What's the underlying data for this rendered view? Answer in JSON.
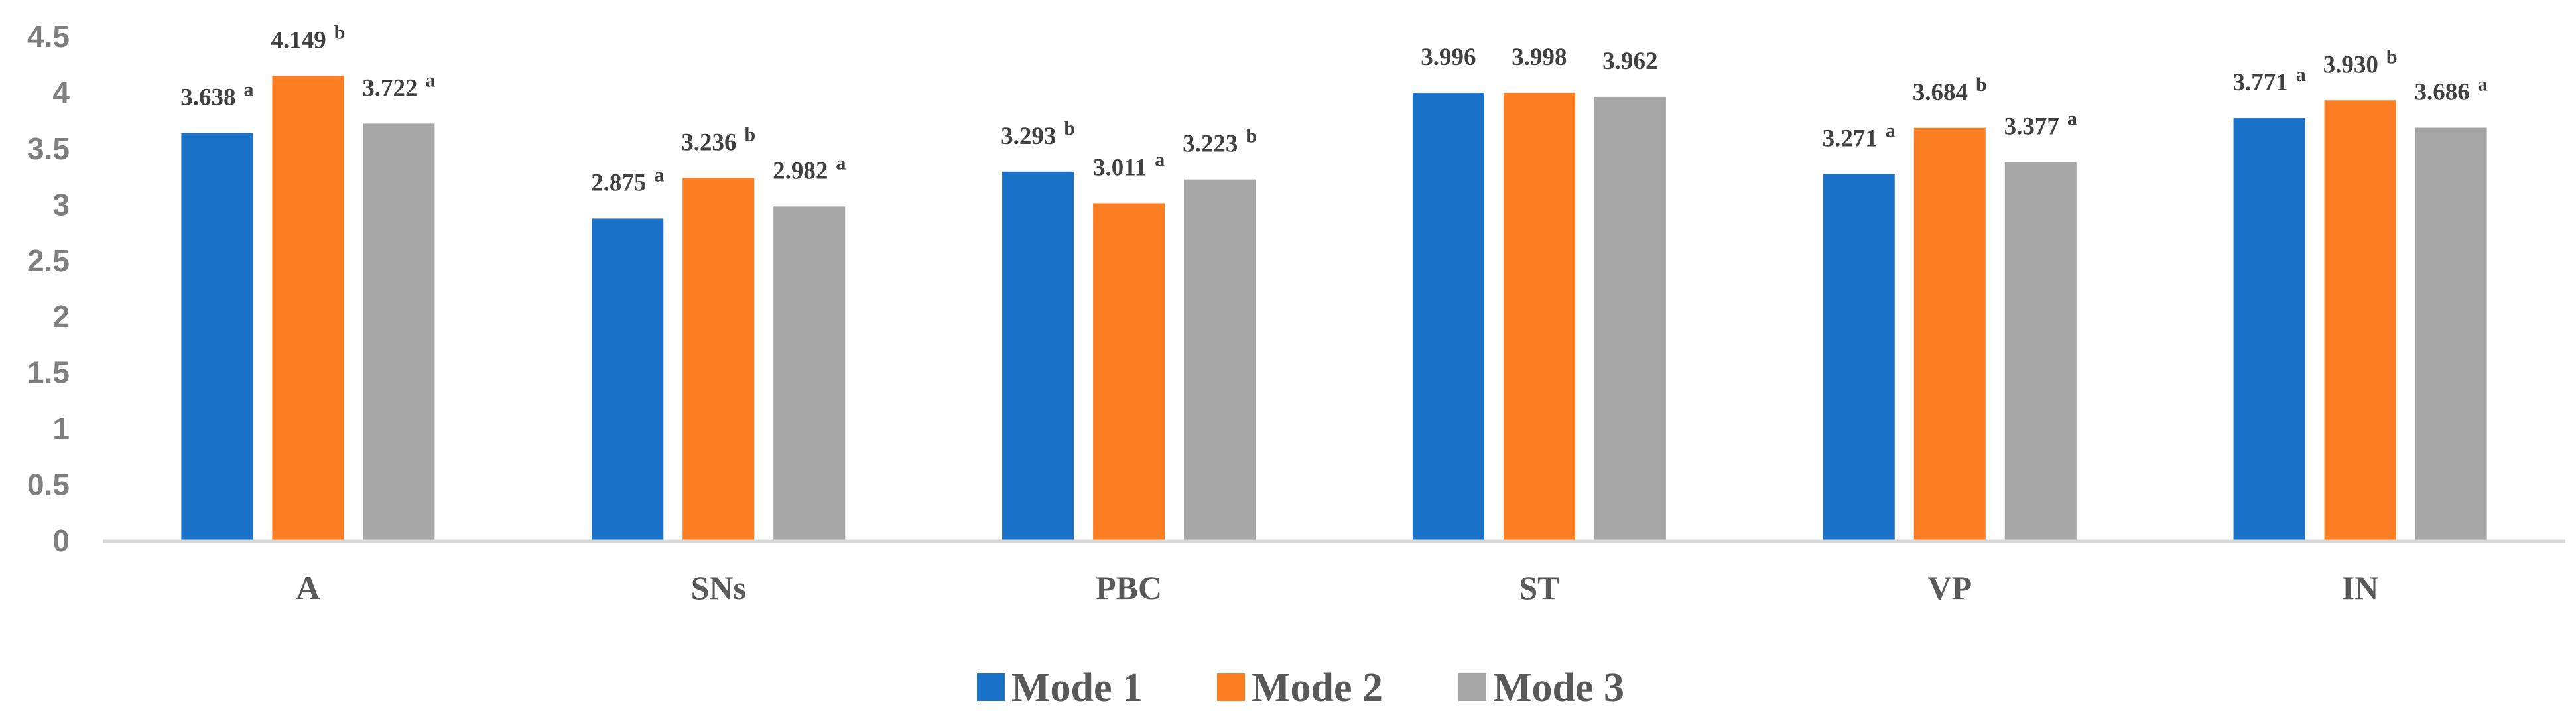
{
  "chart_data": {
    "type": "bar",
    "title": "",
    "xlabel": "",
    "ylabel": "",
    "ylim": [
      0,
      4.5
    ],
    "ytick_labels": [
      "0",
      "0.5",
      "1",
      "1.5",
      "2",
      "2.5",
      "3",
      "3.5",
      "4",
      "4.5"
    ],
    "ytick_values": [
      0,
      0.5,
      1,
      1.5,
      2,
      2.5,
      3,
      3.5,
      4,
      4.5
    ],
    "grid": false,
    "legend_position": "bottom",
    "categories": [
      "A",
      "SNs",
      "PBC",
      "ST",
      "VP",
      "IN"
    ],
    "series": [
      {
        "name": "Mode 1",
        "color": "#1a72c8",
        "values": [
          3.638,
          2.875,
          3.293,
          3.996,
          3.271,
          3.771
        ],
        "value_labels": [
          "3.638",
          "2.875",
          "3.293",
          "3.996",
          "3.271",
          "3.771"
        ],
        "superscripts": [
          "a",
          "a",
          "b",
          "",
          "a",
          "a"
        ]
      },
      {
        "name": "Mode 2",
        "color": "#fd7e22",
        "values": [
          4.149,
          3.236,
          3.011,
          3.998,
          3.684,
          3.93
        ],
        "value_labels": [
          "4.149",
          "3.236",
          "3.011",
          "3.998",
          "3.684",
          "3.930"
        ],
        "superscripts": [
          "b",
          "b",
          "a",
          "",
          "b",
          "b"
        ]
      },
      {
        "name": "Mode 3",
        "color": "#a6a6a6",
        "values": [
          3.722,
          2.982,
          3.223,
          3.962,
          3.377,
          3.686
        ],
        "value_labels": [
          "3.722",
          "2.982",
          "3.223",
          "3.962",
          "3.377",
          "3.686"
        ],
        "superscripts": [
          "a",
          "a",
          "b",
          "",
          "a",
          "a"
        ]
      }
    ],
    "axis_color": "#d9d9d9"
  }
}
